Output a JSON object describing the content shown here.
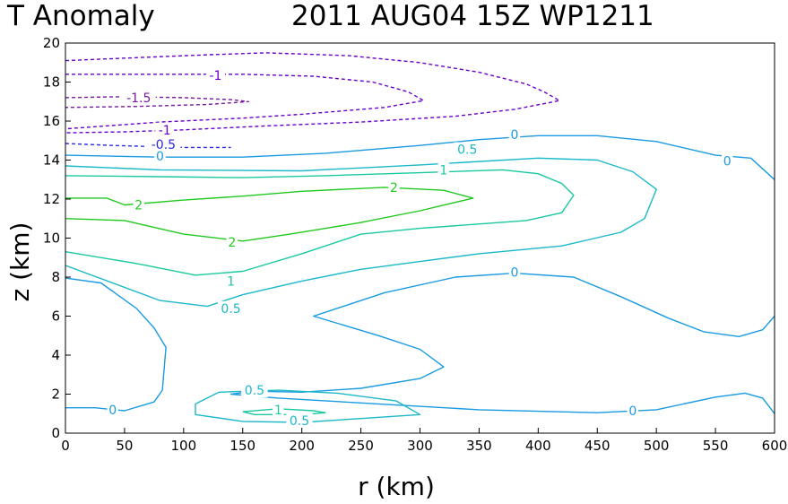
{
  "figure": {
    "title_left": "T Anomaly",
    "title_right": "2011 AUG04 15Z   WP1211"
  },
  "chart_data": {
    "type": "contour",
    "title": "T Anomaly",
    "subtitle": "2011 AUG04 15Z   WP1211",
    "xlabel": "r (km)",
    "ylabel": "z (km)",
    "xlim": [
      0,
      600
    ],
    "ylim": [
      0,
      20
    ],
    "xticks": [
      0,
      50,
      100,
      150,
      200,
      250,
      300,
      350,
      400,
      450,
      500,
      550,
      600
    ],
    "yticks": [
      0,
      2,
      4,
      6,
      8,
      10,
      12,
      14,
      16,
      18,
      20
    ],
    "grid": false,
    "legend": "none",
    "contours": [
      {
        "level": -1,
        "style": "dashed",
        "color": "#6a00c8",
        "points": [
          [
            0,
            19.1
          ],
          [
            60,
            19.25
          ],
          [
            120,
            19.4
          ],
          [
            170,
            19.5
          ],
          [
            240,
            19.35
          ],
          [
            300,
            19.0
          ],
          [
            350,
            18.5
          ],
          [
            390,
            17.9
          ],
          [
            405,
            17.5
          ],
          [
            418,
            17.05
          ],
          [
            380,
            16.6
          ],
          [
            330,
            16.25
          ],
          [
            250,
            15.95
          ],
          [
            170,
            15.75
          ],
          [
            100,
            15.55
          ],
          [
            50,
            15.45
          ],
          [
            0,
            15.4
          ]
        ]
      },
      {
        "level": -0.5,
        "style": "dashed",
        "color": "#2a2ae6",
        "points": [
          [
            0,
            14.85
          ],
          [
            40,
            14.75
          ],
          [
            100,
            14.65
          ],
          [
            140,
            14.65
          ]
        ]
      },
      {
        "level": -1,
        "style": "dashed",
        "color": "#6a00c8",
        "points": [
          [
            0,
            18.4
          ],
          [
            80,
            18.4
          ],
          [
            150,
            18.4
          ],
          [
            210,
            18.3
          ],
          [
            260,
            18.0
          ],
          [
            290,
            17.5
          ],
          [
            303,
            17.05
          ],
          [
            270,
            16.7
          ],
          [
            200,
            16.35
          ],
          [
            150,
            16.15
          ],
          [
            80,
            15.95
          ],
          [
            0,
            15.6
          ]
        ]
      },
      {
        "level": -1.5,
        "style": "dashed",
        "color": "#7a1aa0",
        "points": [
          [
            0,
            17.2
          ],
          [
            50,
            17.25
          ],
          [
            100,
            17.2
          ],
          [
            140,
            17.1
          ],
          [
            155,
            17.0
          ],
          [
            120,
            16.85
          ],
          [
            60,
            16.75
          ],
          [
            0,
            16.7
          ]
        ]
      },
      {
        "level": 0,
        "style": "solid",
        "color": "#1a9ae0",
        "points": [
          [
            0,
            14.25
          ],
          [
            80,
            14.15
          ],
          [
            150,
            14.15
          ],
          [
            220,
            14.35
          ],
          [
            300,
            14.75
          ],
          [
            350,
            15.05
          ],
          [
            400,
            15.25
          ],
          [
            450,
            15.25
          ],
          [
            500,
            14.95
          ],
          [
            550,
            14.25
          ],
          [
            580,
            14.1
          ],
          [
            600,
            13.0
          ]
        ]
      },
      {
        "level": 0.5,
        "style": "solid",
        "color": "#1ab8c8",
        "points": [
          [
            0,
            13.7
          ],
          [
            80,
            13.5
          ],
          [
            200,
            13.45
          ],
          [
            300,
            13.75
          ],
          [
            400,
            14.1
          ],
          [
            450,
            14.0
          ],
          [
            480,
            13.4
          ],
          [
            500,
            12.5
          ],
          [
            490,
            11.0
          ],
          [
            470,
            10.3
          ],
          [
            420,
            9.6
          ],
          [
            350,
            9.2
          ],
          [
            300,
            8.8
          ],
          [
            250,
            8.4
          ],
          [
            200,
            7.8
          ],
          [
            150,
            7.1
          ],
          [
            120,
            6.5
          ],
          [
            80,
            6.8
          ],
          [
            0,
            8.6
          ]
        ]
      },
      {
        "level": 1,
        "style": "solid",
        "color": "#1ac8a0",
        "points": [
          [
            0,
            13.2
          ],
          [
            80,
            13.15
          ],
          [
            150,
            13.1
          ],
          [
            220,
            13.2
          ],
          [
            300,
            13.35
          ],
          [
            370,
            13.5
          ],
          [
            400,
            13.3
          ],
          [
            420,
            12.8
          ],
          [
            430,
            12.2
          ],
          [
            420,
            11.3
          ],
          [
            390,
            10.9
          ],
          [
            300,
            10.5
          ],
          [
            250,
            10.2
          ],
          [
            200,
            9.2
          ],
          [
            150,
            8.3
          ],
          [
            110,
            8.1
          ],
          [
            60,
            8.7
          ],
          [
            0,
            9.3
          ]
        ]
      },
      {
        "level": 2,
        "style": "solid",
        "color": "#22c820",
        "points": [
          [
            0,
            12.05
          ],
          [
            35,
            12.05
          ],
          [
            50,
            11.7
          ],
          [
            100,
            11.95
          ],
          [
            150,
            12.15
          ],
          [
            200,
            12.4
          ],
          [
            270,
            12.6
          ],
          [
            320,
            12.45
          ],
          [
            345,
            12.05
          ],
          [
            300,
            11.4
          ],
          [
            250,
            10.8
          ],
          [
            190,
            10.2
          ],
          [
            150,
            9.85
          ],
          [
            100,
            10.2
          ],
          [
            50,
            10.9
          ],
          [
            0,
            11.0
          ]
        ]
      },
      {
        "level": 0,
        "style": "solid",
        "color": "#1a9ae0",
        "points": [
          [
            0,
            7.95
          ],
          [
            30,
            7.7
          ],
          [
            60,
            6.4
          ],
          [
            75,
            5.4
          ],
          [
            85,
            4.4
          ],
          [
            82,
            2.2
          ],
          [
            75,
            1.6
          ],
          [
            50,
            1.15
          ],
          [
            25,
            1.3
          ],
          [
            0,
            1.3
          ]
        ]
      },
      {
        "level": 0,
        "style": "solid",
        "color": "#1a9ae0",
        "points": [
          [
            600,
            6.0
          ],
          [
            590,
            5.3
          ],
          [
            570,
            4.95
          ],
          [
            540,
            5.2
          ],
          [
            510,
            5.9
          ],
          [
            470,
            7.0
          ],
          [
            430,
            8.0
          ],
          [
            380,
            8.2
          ],
          [
            330,
            8.0
          ],
          [
            270,
            7.2
          ],
          [
            230,
            6.4
          ],
          [
            210,
            6.0
          ],
          [
            265,
            5.0
          ],
          [
            300,
            4.3
          ],
          [
            320,
            3.4
          ],
          [
            300,
            2.8
          ],
          [
            250,
            2.3
          ],
          [
            200,
            2.1
          ],
          [
            160,
            2.15
          ],
          [
            140,
            2.0
          ],
          [
            180,
            1.8
          ],
          [
            250,
            1.55
          ],
          [
            350,
            1.2
          ],
          [
            450,
            1.05
          ],
          [
            500,
            1.2
          ],
          [
            550,
            1.85
          ],
          [
            575,
            2.05
          ],
          [
            590,
            1.8
          ],
          [
            600,
            1.0
          ]
        ]
      },
      {
        "level": 0.5,
        "style": "solid",
        "color": "#1ab8c8",
        "points": [
          [
            110,
            1.5
          ],
          [
            130,
            2.1
          ],
          [
            180,
            2.2
          ],
          [
            230,
            2.05
          ],
          [
            280,
            1.65
          ],
          [
            300,
            0.95
          ],
          [
            250,
            0.75
          ],
          [
            200,
            0.55
          ],
          [
            150,
            0.6
          ],
          [
            110,
            0.95
          ],
          [
            110,
            1.5
          ]
        ]
      },
      {
        "level": 1,
        "style": "solid",
        "color": "#1ac8a0",
        "points": [
          [
            150,
            1.1
          ],
          [
            180,
            1.25
          ],
          [
            210,
            1.15
          ],
          [
            220,
            1.05
          ],
          [
            200,
            0.95
          ],
          [
            160,
            0.95
          ],
          [
            150,
            1.1
          ]
        ]
      }
    ],
    "contour_labels": [
      {
        "text": "-1",
        "x": 127,
        "y": 18.35,
        "color": "#6a00c8"
      },
      {
        "text": "-1.5",
        "x": 62,
        "y": 17.2,
        "color": "#7a1aa0"
      },
      {
        "text": "-1",
        "x": 84,
        "y": 15.55,
        "color": "#6a00c8"
      },
      {
        "text": "-0.5",
        "x": 83,
        "y": 14.8,
        "color": "#2a2ae6"
      },
      {
        "text": "0",
        "x": 80,
        "y": 14.2,
        "color": "#1a9ae0"
      },
      {
        "text": "0",
        "x": 380,
        "y": 15.3,
        "color": "#1a9ae0"
      },
      {
        "text": "0",
        "x": 560,
        "y": 13.95,
        "color": "#1a9ae0"
      },
      {
        "text": "0.5",
        "x": 340,
        "y": 14.55,
        "color": "#1ab8c8"
      },
      {
        "text": "1",
        "x": 320,
        "y": 13.5,
        "color": "#1ac8a0"
      },
      {
        "text": "2",
        "x": 278,
        "y": 12.6,
        "color": "#22c820"
      },
      {
        "text": "2",
        "x": 62,
        "y": 11.7,
        "color": "#22c820"
      },
      {
        "text": "2",
        "x": 141,
        "y": 9.8,
        "color": "#22c820"
      },
      {
        "text": "1",
        "x": 140,
        "y": 7.8,
        "color": "#1ac8a0"
      },
      {
        "text": "0.5",
        "x": 140,
        "y": 6.4,
        "color": "#1ab8c8"
      },
      {
        "text": "0",
        "x": 380,
        "y": 8.25,
        "color": "#1a9ae0"
      },
      {
        "text": "0",
        "x": 40,
        "y": 1.2,
        "color": "#1a9ae0"
      },
      {
        "text": "0",
        "x": 480,
        "y": 1.15,
        "color": "#1a9ae0"
      },
      {
        "text": "0.5",
        "x": 160,
        "y": 2.2,
        "color": "#1ab8c8"
      },
      {
        "text": "1",
        "x": 180,
        "y": 1.2,
        "color": "#1ac8a0"
      },
      {
        "text": "0.5",
        "x": 198,
        "y": 0.65,
        "color": "#1ab8c8"
      }
    ]
  }
}
